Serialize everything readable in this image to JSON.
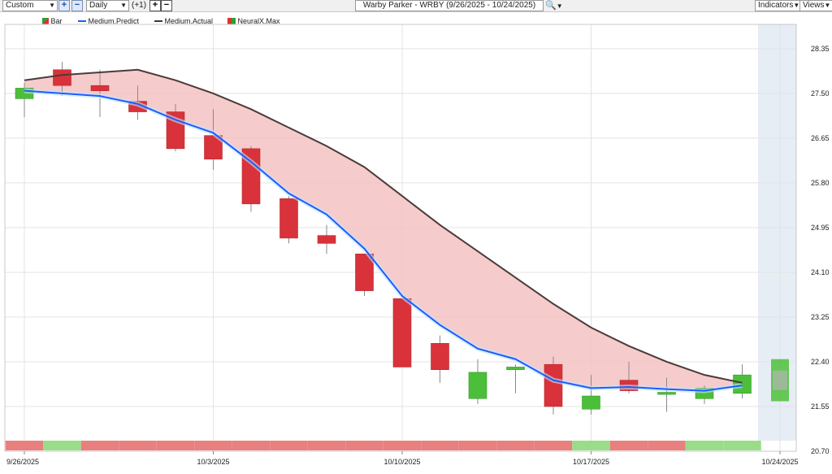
{
  "toolbar": {
    "period": "Custom",
    "interval": "Daily",
    "offset_label": "(+1)",
    "title": "Warby Parker - WRBY (9/26/2025 - 10/24/2025)",
    "indicators_label": "Indicators",
    "views_label": "Views",
    "plus_glyph": "+",
    "minus_glyph": "−",
    "search_icon": "magnifier-icon"
  },
  "legend": [
    {
      "label": "Bar",
      "color": "#2f9e2f"
    },
    {
      "label": "Medium.Predict",
      "color": "#1f5cff"
    },
    {
      "label": "Medium.Actual",
      "color": "#3a3a3a"
    },
    {
      "label": "NeuralX.Max",
      "color": "#d93333"
    }
  ],
  "colors": {
    "up": "#4cbf3a",
    "down": "#d9323a",
    "predict": "#1f5cff",
    "actual": "#4a3b3b",
    "fill": "#f5c2c2",
    "band_red": "#e88080",
    "band_green": "#99dd88",
    "forecast_bg": "#e6edf5"
  },
  "chart_data": {
    "type": "candlestick",
    "title": "Warby Parker - WRBY (9/26/2025 - 10/24/2025)",
    "x_tick_labels": [
      "9/26/2025",
      "10/3/2025",
      "10/10/2025",
      "10/17/2025",
      "10/24/2025"
    ],
    "y_ticks": [
      28.35,
      27.5,
      26.65,
      25.8,
      24.95,
      24.1,
      23.25,
      22.4,
      21.55,
      20.7
    ],
    "ylim": [
      20.7,
      28.75
    ],
    "grid": true,
    "y_axis_side": "right",
    "dates": [
      "9/26",
      "9/29",
      "9/30",
      "10/1",
      "10/2",
      "10/3",
      "10/6",
      "10/7",
      "10/8",
      "10/9",
      "10/10",
      "10/13",
      "10/14",
      "10/15",
      "10/16",
      "10/17",
      "10/20",
      "10/21",
      "10/22",
      "10/23",
      "10/24"
    ],
    "candles": [
      {
        "open": 27.4,
        "high": 27.7,
        "low": 27.05,
        "close": 27.6
      },
      {
        "open": 27.95,
        "high": 28.1,
        "low": 27.45,
        "close": 27.65
      },
      {
        "open": 27.65,
        "high": 27.95,
        "low": 27.05,
        "close": 27.55
      },
      {
        "open": 27.35,
        "high": 27.65,
        "low": 27.0,
        "close": 27.15
      },
      {
        "open": 27.15,
        "high": 27.3,
        "low": 26.4,
        "close": 26.45
      },
      {
        "open": 26.7,
        "high": 27.2,
        "low": 26.05,
        "close": 26.25
      },
      {
        "open": 26.45,
        "high": 26.5,
        "low": 25.25,
        "close": 25.4
      },
      {
        "open": 25.5,
        "high": 25.55,
        "low": 24.65,
        "close": 24.75
      },
      {
        "open": 24.8,
        "high": 25.0,
        "low": 24.45,
        "close": 24.65
      },
      {
        "open": 24.45,
        "high": 24.45,
        "low": 23.65,
        "close": 23.75
      },
      {
        "open": 23.6,
        "high": 23.65,
        "low": 22.3,
        "close": 22.3
      },
      {
        "open": 22.75,
        "high": 22.9,
        "low": 22.0,
        "close": 22.25
      },
      {
        "open": 21.7,
        "high": 22.45,
        "low": 21.6,
        "close": 22.2
      },
      {
        "open": 22.25,
        "high": 22.35,
        "low": 21.8,
        "close": 22.3
      },
      {
        "open": 22.35,
        "high": 22.5,
        "low": 21.4,
        "close": 21.55
      },
      {
        "open": 21.5,
        "high": 22.15,
        "low": 21.4,
        "close": 21.75
      },
      {
        "open": 22.05,
        "high": 22.4,
        "low": 21.8,
        "close": 21.85
      },
      {
        "open": 21.78,
        "high": 22.1,
        "low": 21.45,
        "close": 21.82
      },
      {
        "open": 21.7,
        "high": 21.95,
        "low": 21.6,
        "close": 21.9
      },
      {
        "open": 21.8,
        "high": 22.35,
        "low": 21.7,
        "close": 22.15
      },
      null
    ],
    "series": [
      {
        "name": "Medium.Predict",
        "values": [
          27.55,
          27.5,
          27.45,
          27.3,
          27.0,
          26.75,
          26.2,
          25.6,
          25.2,
          24.55,
          23.65,
          23.1,
          22.65,
          22.45,
          22.05,
          21.9,
          21.92,
          21.88,
          21.85,
          21.95,
          null
        ]
      },
      {
        "name": "Medium.Actual",
        "values": [
          27.75,
          27.85,
          27.9,
          27.95,
          27.75,
          27.5,
          27.2,
          26.85,
          26.5,
          26.1,
          25.55,
          25.0,
          24.5,
          24.0,
          23.5,
          23.05,
          22.7,
          22.4,
          22.15,
          22.0,
          null
        ]
      }
    ],
    "neuralx_max": {
      "value_range": [
        21.65,
        22.45
      ]
    },
    "signal_band": [
      "red",
      "green",
      "red",
      "red",
      "red",
      "red",
      "red",
      "red",
      "red",
      "red",
      "red",
      "red",
      "red",
      "red",
      "red",
      "green",
      "red",
      "red",
      "green",
      "green"
    ]
  }
}
